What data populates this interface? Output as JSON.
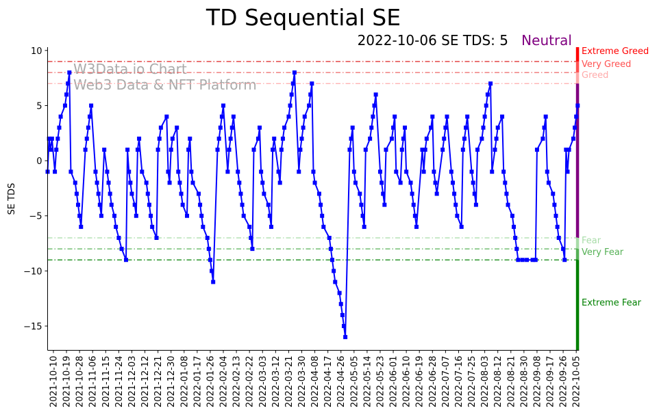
{
  "chart_data": {
    "type": "line",
    "title": "TD Sequential SE",
    "subtitle": "2022-10-06 SE TDS: 5",
    "status": "Neutral",
    "status_color": "#800080",
    "xlabel": "",
    "ylabel": "SE TDS",
    "x_origin_date": "2021-10-06",
    "x_unit": "days since 2021-10-06",
    "xlim": [
      0,
      365
    ],
    "ylim": [
      -17.2,
      10.3
    ],
    "yticks": [
      10,
      5,
      0,
      -5,
      -10,
      -15
    ],
    "xtick_start_day": 4,
    "xtick_step_days": 9,
    "xtick_labels": [
      "2021-10-10",
      "2021-10-19",
      "2021-10-28",
      "2021-11-06",
      "2021-11-15",
      "2021-11-24",
      "2021-12-03",
      "2021-12-12",
      "2021-12-21",
      "2021-12-30",
      "2022-01-08",
      "2022-01-17",
      "2022-01-26",
      "2022-02-04",
      "2022-02-13",
      "2022-02-22",
      "2022-03-03",
      "2022-03-12",
      "2022-03-21",
      "2022-03-30",
      "2022-04-08",
      "2022-04-17",
      "2022-04-26",
      "2022-05-05",
      "2022-05-14",
      "2022-05-23",
      "2022-06-01",
      "2022-06-10",
      "2022-06-19",
      "2022-06-28",
      "2022-07-07",
      "2022-07-16",
      "2022-07-25",
      "2022-08-03",
      "2022-08-12",
      "2022-08-21",
      "2022-08-30",
      "2022-09-08",
      "2022-09-17",
      "2022-09-26",
      "2022-10-05"
    ],
    "watermark": [
      "W3Data.io Chart",
      "Web3 Data & NFT Platform"
    ],
    "series": [
      {
        "name": "SE TDS",
        "color": "#0000ff",
        "marker": "square",
        "points": [
          [
            0,
            -1
          ],
          [
            1,
            2
          ],
          [
            2,
            1
          ],
          [
            3,
            2
          ],
          [
            5,
            -1
          ],
          [
            6,
            1
          ],
          [
            7,
            2
          ],
          [
            8,
            3
          ],
          [
            9,
            4
          ],
          [
            12,
            5
          ],
          [
            13,
            6
          ],
          [
            14,
            7
          ],
          [
            15,
            8
          ],
          [
            16,
            -1
          ],
          [
            19,
            -2
          ],
          [
            20,
            -3
          ],
          [
            21,
            -4
          ],
          [
            22,
            -5
          ],
          [
            23,
            -6
          ],
          [
            26,
            1
          ],
          [
            27,
            2
          ],
          [
            28,
            3
          ],
          [
            29,
            4
          ],
          [
            30,
            5
          ],
          [
            33,
            -1
          ],
          [
            34,
            -2
          ],
          [
            35,
            -3
          ],
          [
            36,
            -4
          ],
          [
            37,
            -5
          ],
          [
            39,
            1
          ],
          [
            41,
            -1
          ],
          [
            42,
            -2
          ],
          [
            43,
            -3
          ],
          [
            44,
            -4
          ],
          [
            46,
            -5
          ],
          [
            47,
            -6
          ],
          [
            49,
            -7
          ],
          [
            51,
            -8
          ],
          [
            54,
            -9
          ],
          [
            55,
            1
          ],
          [
            56,
            -1
          ],
          [
            57,
            -2
          ],
          [
            58,
            -3
          ],
          [
            60,
            -4
          ],
          [
            61,
            -5
          ],
          [
            62,
            1
          ],
          [
            63,
            2
          ],
          [
            65,
            -1
          ],
          [
            68,
            -2
          ],
          [
            69,
            -3
          ],
          [
            70,
            -4
          ],
          [
            71,
            -5
          ],
          [
            72,
            -6
          ],
          [
            75,
            -7
          ],
          [
            76,
            1
          ],
          [
            77,
            2
          ],
          [
            78,
            3
          ],
          [
            82,
            4
          ],
          [
            83,
            -1
          ],
          [
            84,
            -2
          ],
          [
            85,
            1
          ],
          [
            86,
            2
          ],
          [
            89,
            3
          ],
          [
            90,
            -1
          ],
          [
            91,
            -2
          ],
          [
            92,
            -3
          ],
          [
            93,
            -4
          ],
          [
            96,
            -5
          ],
          [
            97,
            1
          ],
          [
            98,
            2
          ],
          [
            99,
            -1
          ],
          [
            100,
            -2
          ],
          [
            104,
            -3
          ],
          [
            105,
            -4
          ],
          [
            106,
            -5
          ],
          [
            107,
            -6
          ],
          [
            110,
            -7
          ],
          [
            111,
            -8
          ],
          [
            112,
            -9
          ],
          [
            113,
            -10
          ],
          [
            114,
            -11
          ],
          [
            117,
            1
          ],
          [
            118,
            2
          ],
          [
            119,
            3
          ],
          [
            120,
            4
          ],
          [
            121,
            5
          ],
          [
            124,
            -1
          ],
          [
            125,
            1
          ],
          [
            126,
            2
          ],
          [
            127,
            3
          ],
          [
            128,
            4
          ],
          [
            131,
            -1
          ],
          [
            132,
            -2
          ],
          [
            133,
            -3
          ],
          [
            134,
            -4
          ],
          [
            135,
            -5
          ],
          [
            139,
            -6
          ],
          [
            140,
            -7
          ],
          [
            141,
            -8
          ],
          [
            142,
            1
          ],
          [
            145,
            2
          ],
          [
            146,
            3
          ],
          [
            147,
            -1
          ],
          [
            148,
            -2
          ],
          [
            149,
            -3
          ],
          [
            152,
            -4
          ],
          [
            153,
            -5
          ],
          [
            154,
            -6
          ],
          [
            155,
            1
          ],
          [
            156,
            2
          ],
          [
            159,
            -1
          ],
          [
            160,
            -2
          ],
          [
            161,
            1
          ],
          [
            162,
            2
          ],
          [
            163,
            3
          ],
          [
            166,
            4
          ],
          [
            167,
            5
          ],
          [
            168,
            6
          ],
          [
            169,
            7
          ],
          [
            170,
            8
          ],
          [
            173,
            -1
          ],
          [
            174,
            1
          ],
          [
            175,
            2
          ],
          [
            176,
            3
          ],
          [
            177,
            4
          ],
          [
            180,
            5
          ],
          [
            181,
            6
          ],
          [
            182,
            7
          ],
          [
            183,
            -1
          ],
          [
            184,
            -2
          ],
          [
            187,
            -3
          ],
          [
            188,
            -4
          ],
          [
            189,
            -5
          ],
          [
            190,
            -6
          ],
          [
            194,
            -7
          ],
          [
            195,
            -8
          ],
          [
            196,
            -9
          ],
          [
            197,
            -10
          ],
          [
            198,
            -11
          ],
          [
            201,
            -12
          ],
          [
            202,
            -13
          ],
          [
            203,
            -14
          ],
          [
            204,
            -15
          ],
          [
            205,
            -16
          ],
          [
            208,
            1
          ],
          [
            209,
            2
          ],
          [
            210,
            3
          ],
          [
            211,
            -1
          ],
          [
            212,
            -2
          ],
          [
            215,
            -3
          ],
          [
            216,
            -4
          ],
          [
            217,
            -5
          ],
          [
            218,
            -6
          ],
          [
            219,
            1
          ],
          [
            222,
            2
          ],
          [
            223,
            3
          ],
          [
            224,
            4
          ],
          [
            225,
            5
          ],
          [
            226,
            6
          ],
          [
            229,
            -1
          ],
          [
            230,
            -2
          ],
          [
            231,
            -3
          ],
          [
            232,
            -4
          ],
          [
            233,
            1
          ],
          [
            237,
            2
          ],
          [
            238,
            3
          ],
          [
            239,
            4
          ],
          [
            240,
            -1
          ],
          [
            243,
            -2
          ],
          [
            244,
            1
          ],
          [
            245,
            2
          ],
          [
            246,
            3
          ],
          [
            247,
            -1
          ],
          [
            250,
            -2
          ],
          [
            251,
            -3
          ],
          [
            252,
            -4
          ],
          [
            253,
            -5
          ],
          [
            254,
            -6
          ],
          [
            258,
            1
          ],
          [
            259,
            -1
          ],
          [
            260,
            1
          ],
          [
            261,
            2
          ],
          [
            264,
            3
          ],
          [
            265,
            4
          ],
          [
            266,
            -1
          ],
          [
            267,
            -2
          ],
          [
            268,
            -3
          ],
          [
            272,
            1
          ],
          [
            273,
            2
          ],
          [
            274,
            3
          ],
          [
            275,
            4
          ],
          [
            278,
            -1
          ],
          [
            279,
            -2
          ],
          [
            280,
            -3
          ],
          [
            281,
            -4
          ],
          [
            282,
            -5
          ],
          [
            285,
            -6
          ],
          [
            286,
            1
          ],
          [
            287,
            2
          ],
          [
            288,
            3
          ],
          [
            289,
            4
          ],
          [
            292,
            -1
          ],
          [
            293,
            -2
          ],
          [
            294,
            -3
          ],
          [
            295,
            -4
          ],
          [
            296,
            1
          ],
          [
            299,
            2
          ],
          [
            300,
            3
          ],
          [
            301,
            4
          ],
          [
            302,
            5
          ],
          [
            303,
            6
          ],
          [
            305,
            7
          ],
          [
            306,
            -1
          ],
          [
            308,
            1
          ],
          [
            309,
            2
          ],
          [
            310,
            3
          ],
          [
            313,
            4
          ],
          [
            314,
            -1
          ],
          [
            315,
            -2
          ],
          [
            316,
            -3
          ],
          [
            317,
            -4
          ],
          [
            320,
            -5
          ],
          [
            321,
            -6
          ],
          [
            322,
            -7
          ],
          [
            323,
            -8
          ],
          [
            324,
            -9
          ],
          [
            327,
            -9
          ],
          [
            330,
            -9
          ],
          [
            334,
            -9
          ],
          [
            336,
            -9
          ],
          [
            337,
            1
          ],
          [
            341,
            2
          ],
          [
            342,
            3
          ],
          [
            343,
            4
          ],
          [
            344,
            -1
          ],
          [
            345,
            -2
          ],
          [
            348,
            -3
          ],
          [
            349,
            -4
          ],
          [
            350,
            -5
          ],
          [
            351,
            -6
          ],
          [
            352,
            -7
          ],
          [
            355,
            -8
          ],
          [
            356,
            -9
          ],
          [
            357,
            1
          ],
          [
            358,
            -1
          ],
          [
            359,
            1
          ],
          [
            362,
            2
          ],
          [
            363,
            3
          ],
          [
            364,
            4
          ],
          [
            365,
            5
          ]
        ]
      }
    ],
    "zones": [
      {
        "label": "Extreme Greed",
        "level": 9,
        "from": 9,
        "to": 10.3,
        "color": "#ff0000",
        "line_color": "#dd2222"
      },
      {
        "label": "Very Greed",
        "level": 8,
        "from": 8,
        "to": 9,
        "color": "#ff5050",
        "line_color": "#ee6666"
      },
      {
        "label": "Greed",
        "level": 7,
        "from": 7,
        "to": 8,
        "color": "#ffaaaa",
        "line_color": "#ffaaaa"
      },
      {
        "label": "",
        "level": null,
        "from": -7,
        "to": 7,
        "color": "#800080",
        "line_color": null
      },
      {
        "label": "Fear",
        "level": -7,
        "from": -8,
        "to": -7,
        "color": "#a8dca8",
        "line_color": "#a8dca8"
      },
      {
        "label": "Very Fear",
        "level": -8,
        "from": -9,
        "to": -8,
        "color": "#55b055",
        "line_color": "#55b055"
      },
      {
        "label": "Extreme Fear",
        "level": -9,
        "from": -17.2,
        "to": -9,
        "color": "#008000",
        "line_color": "#008000"
      }
    ],
    "grid": false,
    "legend": "none"
  }
}
